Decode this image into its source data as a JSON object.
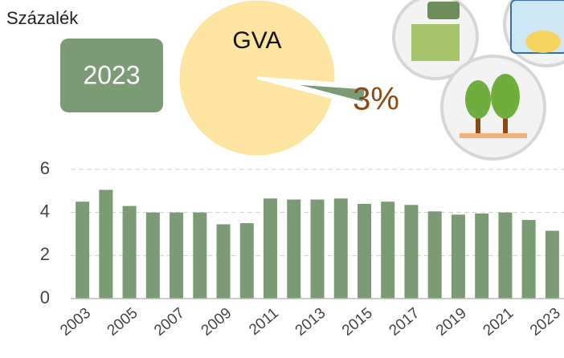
{
  "chart_data": [
    {
      "type": "pie",
      "title": "GVA",
      "badge": "2023",
      "slices": [
        {
          "value": 97,
          "color": "#fde4a1"
        },
        {
          "value": 3,
          "color": "#7b9b74",
          "label": "3%",
          "label_color": "#8b4a14"
        }
      ]
    },
    {
      "type": "bar",
      "ylabel": "Százalék",
      "color": "#7b9b74",
      "categories": [
        "2003",
        null,
        "2005",
        null,
        "2007",
        null,
        "2009",
        null,
        "2011",
        null,
        "2013",
        null,
        "2015",
        null,
        "2017",
        null,
        "2019",
        null,
        "2021",
        null,
        "2023"
      ],
      "values": [
        4.5,
        5.05,
        4.3,
        4.0,
        4.0,
        4.0,
        3.45,
        3.5,
        4.65,
        4.6,
        4.6,
        4.65,
        4.4,
        4.5,
        4.35,
        4.05,
        3.9,
        3.95,
        4.0,
        3.65,
        3.15
      ],
      "ylim": [
        0,
        6
      ],
      "yticks": [
        0,
        2,
        4,
        6
      ],
      "grid": true
    }
  ]
}
